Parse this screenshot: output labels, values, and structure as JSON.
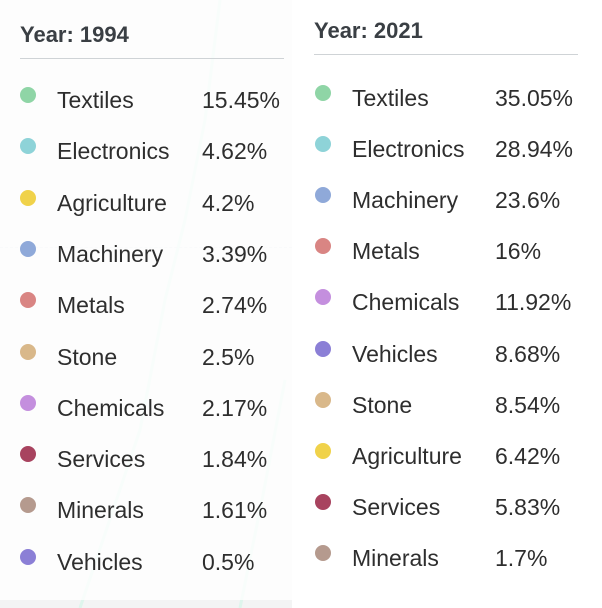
{
  "chart_data": [
    {
      "type": "table",
      "title": "Year: 1994",
      "categories": [
        "Textiles",
        "Electronics",
        "Agriculture",
        "Machinery",
        "Metals",
        "Stone",
        "Chemicals",
        "Services",
        "Minerals",
        "Vehicles"
      ],
      "values": [
        "15.45%",
        "4.62%",
        "4.2%",
        "3.39%",
        "2.74%",
        "2.5%",
        "2.17%",
        "1.84%",
        "1.61%",
        "0.5%"
      ],
      "colors": [
        "#8fd5a6",
        "#8ed3d8",
        "#f0d24a",
        "#8fa9d9",
        "#d98583",
        "#d9b88a",
        "#c48fde",
        "#a8435f",
        "#b59a8e",
        "#8b7fd6"
      ]
    },
    {
      "type": "table",
      "title": "Year: 2021",
      "categories": [
        "Textiles",
        "Electronics",
        "Machinery",
        "Metals",
        "Chemicals",
        "Vehicles",
        "Stone",
        "Agriculture",
        "Services",
        "Minerals"
      ],
      "values": [
        "35.05%",
        "28.94%",
        "23.6%",
        "16%",
        "11.92%",
        "8.68%",
        "8.54%",
        "6.42%",
        "5.83%",
        "1.7%"
      ],
      "colors": [
        "#8fd5a6",
        "#8ed3d8",
        "#8fa9d9",
        "#d98583",
        "#c48fde",
        "#8b7fd6",
        "#d9b88a",
        "#f0d24a",
        "#a8435f",
        "#b59a8e"
      ]
    }
  ]
}
